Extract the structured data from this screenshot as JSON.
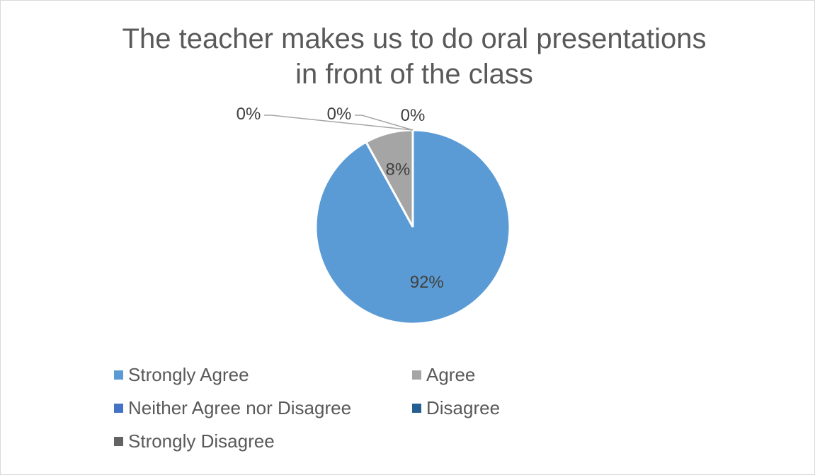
{
  "chart_data": {
    "type": "pie",
    "title": "The teacher makes us to do oral presentations in front of the class",
    "title_lines": [
      "The teacher makes us to do oral presentations",
      "in front of the class"
    ],
    "start_angle_deg": 0,
    "direction": "clockwise",
    "legend_position": "bottom",
    "slices": [
      {
        "label": "Strongly Agree",
        "value": 92,
        "display": "92%",
        "color": "#5B9BD5"
      },
      {
        "label": "Agree",
        "value": 8,
        "display": "8%",
        "color": "#A5A5A5"
      },
      {
        "label": "Neither Agree nor Disagree",
        "value": 0,
        "display": "0%",
        "color": "#4472C4"
      },
      {
        "label": "Disagree",
        "value": 0,
        "display": "0%",
        "color": "#255E91"
      },
      {
        "label": "Strongly Disagree",
        "value": 0,
        "display": "0%",
        "color": "#636363"
      }
    ]
  }
}
